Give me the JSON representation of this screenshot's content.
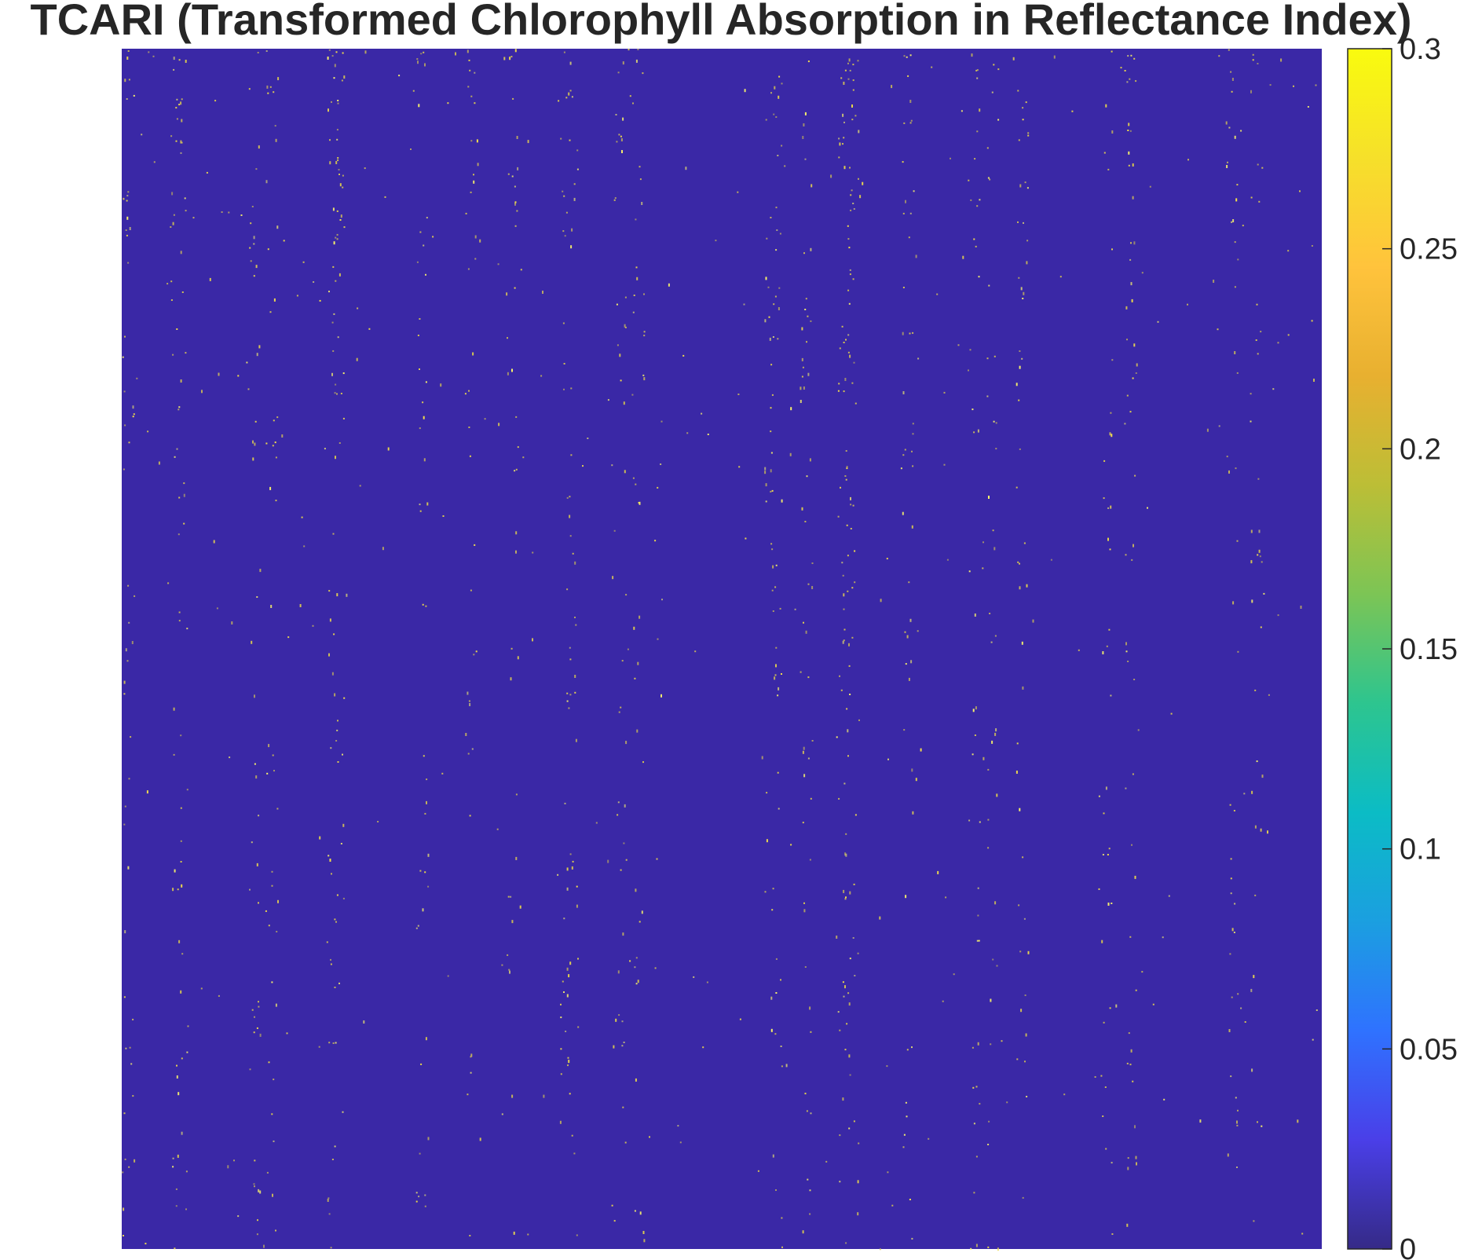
{
  "chart_data": {
    "type": "heatmap",
    "title": "TCARI (Transformed Chlorophyll Absorption in Reflectance Index)",
    "xlabel": "",
    "ylabel": "",
    "background_value": 0,
    "background_color": "#3a28a6",
    "highlight_color": "#e8d84a",
    "description_values": "Field is almost entirely 0, with sparse isolated pixels near the colormap maximum arranged in faint vertical streaks.",
    "colorbar": {
      "colormap": "parula",
      "clim": [
        0,
        0.3
      ],
      "ticks": [
        0,
        0.05,
        0.1,
        0.15,
        0.2,
        0.25,
        0.3
      ],
      "tick_labels": [
        "0",
        "0.05",
        "0.1",
        "0.15",
        "0.2",
        "0.25",
        "0.3"
      ],
      "colors": [
        "#352a87",
        "#4a3fe8",
        "#2f72ff",
        "#1b9fe0",
        "#0bbcc5",
        "#2dc58f",
        "#7cc555",
        "#bcbe36",
        "#e8b030",
        "#ffc33c",
        "#f6e02a",
        "#f9fb0e"
      ]
    }
  }
}
